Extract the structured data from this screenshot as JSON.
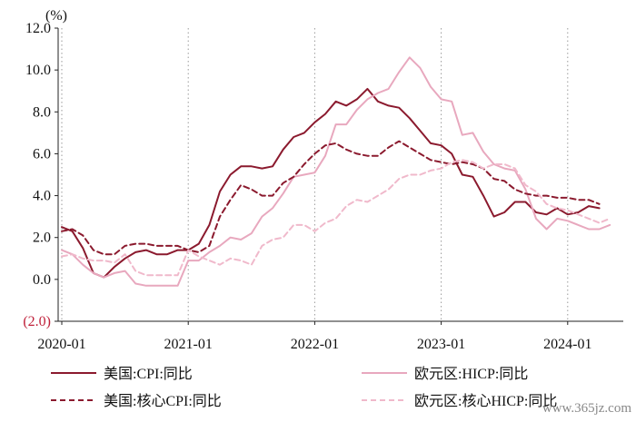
{
  "chart_data": {
    "type": "line",
    "ylabel": "(%)",
    "ylim": [
      -2.0,
      12.0
    ],
    "y_ticks": [
      "12.0",
      "10.0",
      "8.0",
      "6.0",
      "4.0",
      "2.0",
      "0.0",
      "(2.0)"
    ],
    "y_tick_values": [
      12,
      10,
      8,
      6,
      4,
      2,
      0,
      -2
    ],
    "x_ticks": [
      "2020-01",
      "2021-01",
      "2022-01",
      "2023-01",
      "2024-01"
    ],
    "x_tick_index": [
      0,
      12,
      24,
      36,
      48
    ],
    "x_start": "2020-01",
    "x_end": "2024-02",
    "grid": "vertical-dotted",
    "legend_position": "bottom",
    "series": [
      {
        "name": "美国:CPI:同比",
        "color": "#8b1a2e",
        "dash": "solid",
        "values": [
          2.5,
          2.3,
          1.5,
          0.3,
          0.1,
          0.6,
          1.0,
          1.3,
          1.4,
          1.2,
          1.2,
          1.4,
          1.4,
          1.7,
          2.6,
          4.2,
          5.0,
          5.4,
          5.4,
          5.3,
          5.4,
          6.2,
          6.8,
          7.0,
          7.5,
          7.9,
          8.5,
          8.3,
          8.6,
          9.1,
          8.5,
          8.3,
          8.2,
          7.7,
          7.1,
          6.5,
          6.4,
          6.0,
          5.0,
          4.9,
          4.0,
          3.0,
          3.2,
          3.7,
          3.7,
          3.2,
          3.1,
          3.4,
          3.1,
          3.2,
          3.5,
          3.4
        ]
      },
      {
        "name": "欧元区:HICP:同比",
        "color": "#e8a8be",
        "dash": "solid",
        "values": [
          1.4,
          1.2,
          0.7,
          0.3,
          0.1,
          0.3,
          0.4,
          -0.2,
          -0.3,
          -0.3,
          -0.3,
          -0.3,
          0.9,
          0.9,
          1.3,
          1.6,
          2.0,
          1.9,
          2.2,
          3.0,
          3.4,
          4.1,
          4.9,
          5.0,
          5.1,
          5.9,
          7.4,
          7.4,
          8.1,
          8.6,
          8.9,
          9.1,
          9.9,
          10.6,
          10.1,
          9.2,
          8.6,
          8.5,
          6.9,
          7.0,
          6.1,
          5.5,
          5.3,
          5.2,
          4.3,
          2.9,
          2.4,
          2.9,
          2.8,
          2.6,
          2.4,
          2.4,
          2.6
        ]
      },
      {
        "name": "美国:核心CPI:同比",
        "color": "#8b1a2e",
        "dash": "dashed",
        "values": [
          2.3,
          2.4,
          2.1,
          1.4,
          1.2,
          1.2,
          1.6,
          1.7,
          1.7,
          1.6,
          1.6,
          1.6,
          1.4,
          1.3,
          1.6,
          3.0,
          3.8,
          4.5,
          4.3,
          4.0,
          4.0,
          4.6,
          4.9,
          5.5,
          6.0,
          6.4,
          6.5,
          6.2,
          6.0,
          5.9,
          5.9,
          6.3,
          6.6,
          6.3,
          6.0,
          5.7,
          5.6,
          5.5,
          5.6,
          5.5,
          5.3,
          4.8,
          4.7,
          4.3,
          4.1,
          4.0,
          4.0,
          3.9,
          3.9,
          3.8,
          3.8,
          3.6
        ]
      },
      {
        "name": "欧元区:核心HICP:同比",
        "color": "#f0b9cb",
        "dash": "dashed",
        "values": [
          1.1,
          1.2,
          1.0,
          0.9,
          0.9,
          0.8,
          1.2,
          0.4,
          0.2,
          0.2,
          0.2,
          0.2,
          1.4,
          1.1,
          0.9,
          0.7,
          1.0,
          0.9,
          0.7,
          1.6,
          1.9,
          2.0,
          2.6,
          2.6,
          2.3,
          2.7,
          2.9,
          3.5,
          3.8,
          3.7,
          4.0,
          4.3,
          4.8,
          5.0,
          5.0,
          5.2,
          5.3,
          5.6,
          5.7,
          5.6,
          5.3,
          5.5,
          5.5,
          5.3,
          4.5,
          4.2,
          3.6,
          3.4,
          3.3,
          3.1,
          2.9,
          2.7,
          2.9
        ]
      }
    ]
  },
  "watermark": "www.365jz.com"
}
